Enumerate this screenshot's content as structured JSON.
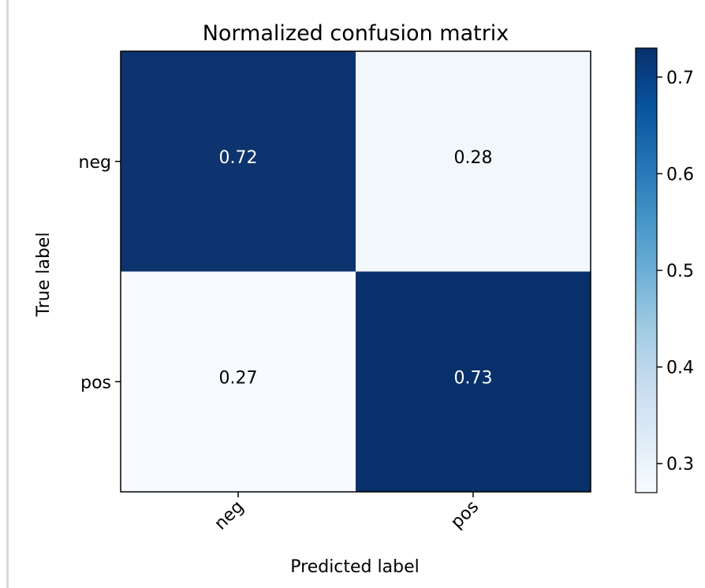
{
  "chart_data": {
    "type": "heatmap",
    "title": "Normalized confusion matrix",
    "xlabel": "Predicted label",
    "ylabel": "True label",
    "x_categories": [
      "neg",
      "pos"
    ],
    "y_categories": [
      "neg",
      "pos"
    ],
    "values": [
      [
        0.72,
        0.28
      ],
      [
        0.27,
        0.73
      ]
    ],
    "value_labels": [
      [
        "0.72",
        "0.28"
      ],
      [
        "0.27",
        "0.73"
      ]
    ],
    "colorbar": {
      "range": [
        0.27,
        0.73
      ],
      "ticks": [
        0.3,
        0.4,
        0.5,
        0.6,
        0.7
      ],
      "tick_labels": [
        "0.3",
        "0.4",
        "0.5",
        "0.6",
        "0.7"
      ],
      "colormap": "Blues"
    },
    "colors": {
      "low": "#f7fbff",
      "high": "#08306b"
    }
  }
}
